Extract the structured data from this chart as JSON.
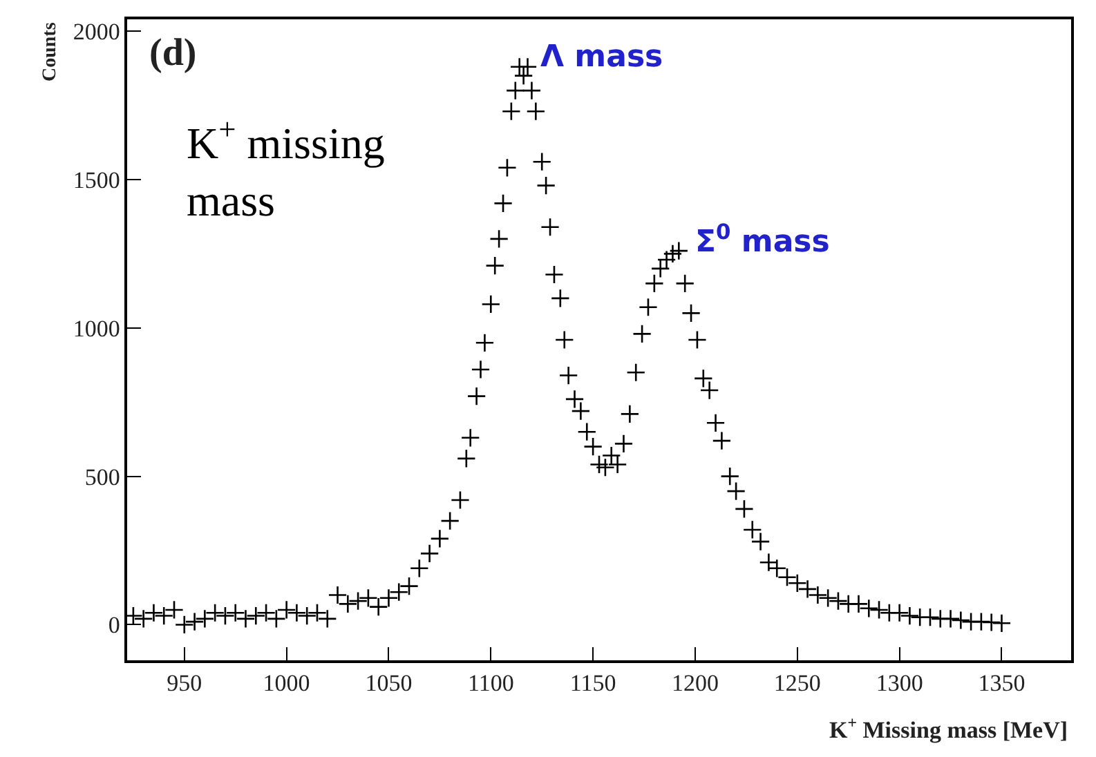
{
  "chart_data": {
    "type": "scatter",
    "xlabel": "K$^{+}$ Missing mass [MeV]",
    "ylabel": "Counts",
    "marker": "cross",
    "x": [
      925,
      930,
      935,
      940,
      945,
      950,
      955,
      960,
      965,
      970,
      975,
      980,
      985,
      990,
      995,
      1000,
      1005,
      1010,
      1015,
      1020,
      1025,
      1030,
      1035,
      1040,
      1045,
      1050,
      1055,
      1060,
      1065,
      1070,
      1075,
      1080,
      1085,
      1088,
      1090,
      1093,
      1095,
      1097,
      1100,
      1102,
      1104,
      1106,
      1108,
      1110,
      1112,
      1114,
      1116,
      1118,
      1120,
      1122,
      1125,
      1127,
      1129,
      1131,
      1134,
      1136,
      1138,
      1141,
      1144,
      1147,
      1150,
      1153,
      1156,
      1159,
      1162,
      1165,
      1168,
      1171,
      1174,
      1177,
      1180,
      1183,
      1186,
      1189,
      1192,
      1195,
      1198,
      1201,
      1204,
      1207,
      1210,
      1213,
      1217,
      1220,
      1224,
      1228,
      1232,
      1236,
      1240,
      1245,
      1250,
      1255,
      1260,
      1265,
      1270,
      1275,
      1280,
      1285,
      1290,
      1295,
      1300,
      1305,
      1310,
      1315,
      1320,
      1325,
      1330,
      1335,
      1340,
      1345,
      1350
    ],
    "series": [
      {
        "color": "#000000",
        "values": [
          30,
          20,
          40,
          30,
          50,
          0,
          10,
          20,
          40,
          30,
          40,
          20,
          30,
          40,
          20,
          50,
          40,
          30,
          40,
          20,
          100,
          70,
          80,
          90,
          60,
          90,
          110,
          130,
          190,
          240,
          290,
          350,
          420,
          560,
          630,
          770,
          860,
          950,
          1080,
          1210,
          1300,
          1420,
          1540,
          1730,
          1800,
          1880,
          1850,
          1880,
          1800,
          1730,
          1560,
          1480,
          1340,
          1180,
          1100,
          960,
          840,
          760,
          720,
          650,
          600,
          540,
          530,
          570,
          540,
          610,
          710,
          850,
          980,
          1070,
          1150,
          1200,
          1230,
          1250,
          1260,
          1150,
          1050,
          960,
          830,
          790,
          680,
          620,
          500,
          450,
          390,
          320,
          280,
          210,
          190,
          160,
          140,
          120,
          100,
          90,
          80,
          70,
          70,
          55,
          50,
          40,
          40,
          30,
          25,
          25,
          20,
          20,
          15,
          10,
          10,
          8,
          5
        ]
      }
    ],
    "xlim": [
      922,
      1384
    ],
    "ylim": [
      -120,
      2040
    ],
    "xticks": [
      950,
      1000,
      1050,
      1100,
      1150,
      1200,
      1250,
      1300,
      1350
    ],
    "yticks": [
      0,
      500,
      1000,
      1500,
      2000
    ],
    "annotations": [
      "(d)",
      "K$^{+}$ missing\nmass",
      {
        "text": "Λ mass",
        "x": 1116,
        "y": 1880
      },
      {
        "text": "Σ$^{0}$ mass",
        "x": 1192,
        "y": 1260
      }
    ]
  }
}
